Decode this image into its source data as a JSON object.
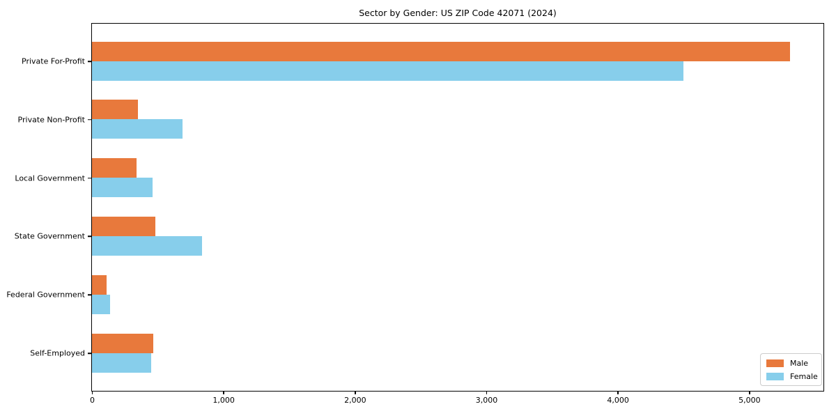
{
  "chart_data": {
    "type": "bar",
    "orientation": "horizontal",
    "title": "Sector by Gender: US ZIP Code 42071 (2024)",
    "categories": [
      "Private For-Profit",
      "Private Non-Profit",
      "Local Government",
      "State Government",
      "Federal Government",
      "Self-Employed"
    ],
    "series": [
      {
        "name": "Male",
        "color": "#E8793C",
        "values": [
          5310,
          350,
          340,
          480,
          110,
          465
        ]
      },
      {
        "name": "Female",
        "color": "#87CEEB",
        "values": [
          4500,
          690,
          460,
          835,
          140,
          450
        ]
      }
    ],
    "xlabel": "",
    "ylabel": "",
    "xlim": [
      0,
      5560
    ],
    "xticks": [
      0,
      1000,
      2000,
      3000,
      4000,
      5000
    ],
    "xtick_labels": [
      "0",
      "1,000",
      "2,000",
      "3,000",
      "4,000",
      "5,000"
    ],
    "grid": false,
    "legend": {
      "position": "lower right",
      "entries": [
        "Male",
        "Female"
      ]
    }
  }
}
